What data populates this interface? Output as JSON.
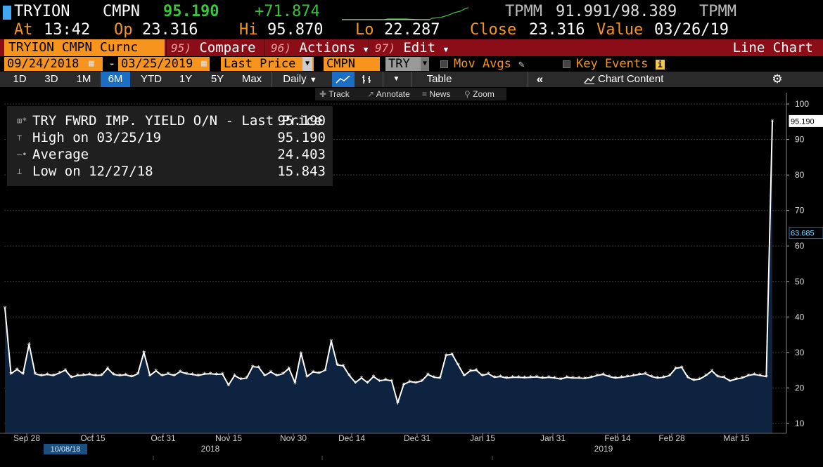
{
  "ticker": {
    "symbol": "TRYION",
    "source": "CMPN",
    "last": "95.190",
    "change": "+71.874",
    "right_code": "TPMM",
    "bid_ask": "91.991/98.389",
    "right_code2": "TPMM"
  },
  "quote": {
    "at_label": "At",
    "at_time": "13:42",
    "op_label": "Op",
    "op_value": "23.316",
    "hi_label": "Hi",
    "hi_value": "95.870",
    "lo_label": "Lo",
    "lo_value": "22.287",
    "close_label": "Close",
    "close_value": "23.316",
    "value_label": "Value",
    "value_date": "03/26/19"
  },
  "function_bar": {
    "security": "TRYION CMPN Curnc",
    "compare_num": "95)",
    "compare_label": "Compare",
    "actions_num": "96)",
    "actions_label": "Actions",
    "edit_num": "97)",
    "edit_label": "Edit",
    "chart_type": "Line Chart"
  },
  "settings": {
    "start_date": "09/24/2018",
    "dash": "-",
    "end_date": "03/25/2019",
    "field": "Last Price",
    "source": "CMPN",
    "currency": "TRY",
    "mov_avgs": "Mov Avgs",
    "key_events": "Key Events",
    "key_events_badge": "i"
  },
  "periods": [
    "1D",
    "3D",
    "1M",
    "6M",
    "YTD",
    "1Y",
    "5Y",
    "Max"
  ],
  "active_period": "6M",
  "toolbar": {
    "frequency": "Daily",
    "table_label": "Table",
    "chart_content_label": "Chart Content"
  },
  "tools": [
    "Track",
    "Annotate",
    "News",
    "Zoom"
  ],
  "legend": {
    "series_name": "TRY FWRD IMP. YIELD O/N - Last Price",
    "last_value": "95.190",
    "high_label": "High on 03/25/19",
    "high_value": "95.190",
    "average_label": "Average",
    "average_value": "24.403",
    "low_label": "Low on 12/27/18",
    "low_value": "15.843"
  },
  "colors": {
    "orange": "#f7941d",
    "green": "#3cc23c",
    "blue_accent": "#3fa9f5",
    "function_bar": "#8b0d17",
    "area_fill": "#0e2340",
    "grid": "#3a3a3a"
  },
  "chart_data": {
    "type": "area",
    "ylim": [
      8,
      102
    ],
    "yticks": [
      10,
      20,
      30,
      40,
      50,
      60,
      70,
      80,
      90,
      100
    ],
    "price_tags": [
      "95.190",
      "63.685"
    ],
    "x_tick_labels": [
      "Sep 28",
      "Oct 15",
      "Oct 31",
      "Nov 15",
      "Nov 30",
      "Dec 14",
      "Dec 31",
      "Jan 15",
      "Jan 31",
      "Feb 14",
      "Feb 28",
      "Mar 15"
    ],
    "year_labels": [
      "2018",
      "2019"
    ],
    "cursor_date": "10/08/18",
    "series": [
      {
        "values": [
          42.5,
          24.0,
          25.2,
          24.0,
          32.3,
          24.0,
          23.5,
          23.8,
          23.5,
          24.2,
          25.0,
          23.0,
          23.5,
          23.6,
          23.8,
          23.5,
          23.6,
          25.5,
          23.8,
          23.5,
          23.7,
          23.2,
          24.0,
          30.0,
          23.5,
          24.8,
          23.5,
          24.0,
          23.5,
          24.6,
          24.0,
          23.8,
          23.5,
          23.9,
          24.0,
          23.8,
          23.9,
          20.8,
          23.5,
          22.5,
          22.8,
          26.0,
          25.8,
          23.5,
          24.5,
          23.5,
          24.0,
          25.5,
          21.5,
          29.8,
          23.2,
          24.5,
          24.2,
          25.0,
          33.2,
          26.5,
          26.2,
          23.5,
          21.5,
          22.8,
          21.5,
          23.2,
          22.0,
          22.3,
          22.0,
          15.8,
          21.0,
          21.8,
          21.5,
          22.0,
          23.8,
          23.0,
          22.8,
          29.2,
          29.5,
          26.5,
          23.5,
          24.8,
          25.0,
          23.5,
          24.0,
          23.0,
          23.2,
          22.8,
          23.0,
          23.0,
          22.9,
          23.0,
          23.1,
          22.8,
          23.0,
          22.8,
          22.5,
          23.0,
          22.8,
          22.8,
          22.7,
          23.0,
          23.5,
          23.8,
          23.2,
          22.8,
          23.0,
          23.2,
          23.5,
          23.8,
          24.0,
          23.2,
          22.8,
          23.0,
          23.5,
          25.5,
          25.8,
          23.0,
          22.2,
          22.5,
          23.5,
          24.8,
          23.2,
          23.0,
          22.0,
          22.5,
          22.8,
          23.5,
          23.8,
          23.5,
          23.2,
          95.2
        ]
      }
    ]
  }
}
